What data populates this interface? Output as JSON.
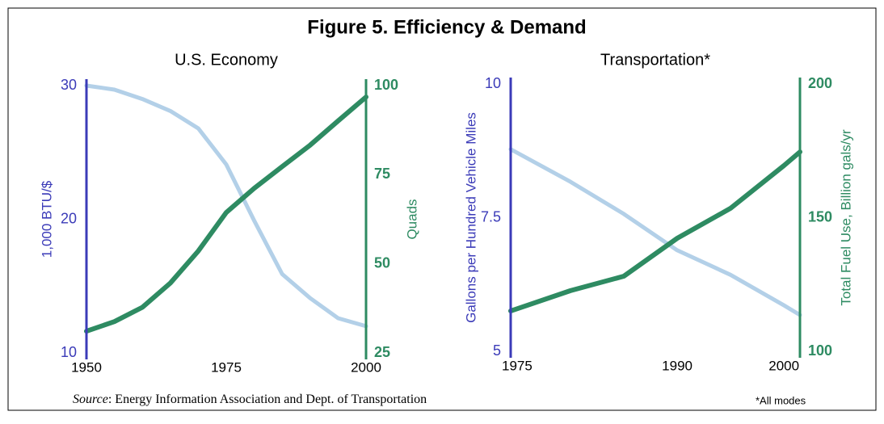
{
  "title": "Figure 5. Efficiency & Demand",
  "source_label": "Source",
  "source_text": ": Energy Information Association and Dept. of Transportation",
  "note": "*All modes",
  "chart_data": [
    {
      "type": "line",
      "title": "U.S. Economy",
      "x": [
        1950,
        1955,
        1960,
        1965,
        1970,
        1975,
        1980,
        1985,
        1990,
        1995,
        2000
      ],
      "xlim": [
        1950,
        2000
      ],
      "xticks": [
        1950,
        1975,
        2000
      ],
      "ylabel": "1,000 BTU/$",
      "ylim": [
        10,
        30
      ],
      "yticks": [
        10,
        20,
        30
      ],
      "y2label": "Quads",
      "y2lim": [
        25,
        100
      ],
      "y2ticks": [
        25,
        50,
        75,
        100
      ],
      "grid": false,
      "series": [
        {
          "color": "#b3d0e8",
          "values": [
            30,
            29.7,
            29,
            28.1,
            26.8,
            24.1,
            19.9,
            15.9,
            14.1,
            12.6,
            12.0
          ]
        },
        {
          "color": "#2e8b62",
          "axis": "y2",
          "values": [
            31.1,
            33.8,
            37.8,
            44.6,
            53.6,
            64.4,
            71.2,
            77.3,
            83.3,
            90.1,
            96.8
          ]
        }
      ]
    },
    {
      "type": "line",
      "title": "Transportation*",
      "x": [
        1974.4,
        1980,
        1985,
        1990,
        1995,
        2000,
        2001.5
      ],
      "xlim": [
        1974.4,
        2001.5
      ],
      "xticks": [
        1975,
        1990,
        2000
      ],
      "ylabel": "Gallons per Hundred Vehicle Miles",
      "ylim": [
        5,
        10
      ],
      "yticks": [
        5,
        7.5,
        10
      ],
      "y2label": "Total Fuel Use, Billion gals/yr",
      "y2lim": [
        100,
        200
      ],
      "y2ticks": [
        100,
        150,
        200
      ],
      "grid": false,
      "series": [
        {
          "color": "#b3d0e8",
          "values": [
            8.78,
            8.17,
            7.57,
            6.89,
            6.43,
            5.86,
            5.68
          ]
        },
        {
          "color": "#2e8b62",
          "axis": "y2",
          "values": [
            115.1,
            122.7,
            128.1,
            142.3,
            153.5,
            169.5,
            174.6
          ]
        }
      ]
    }
  ]
}
